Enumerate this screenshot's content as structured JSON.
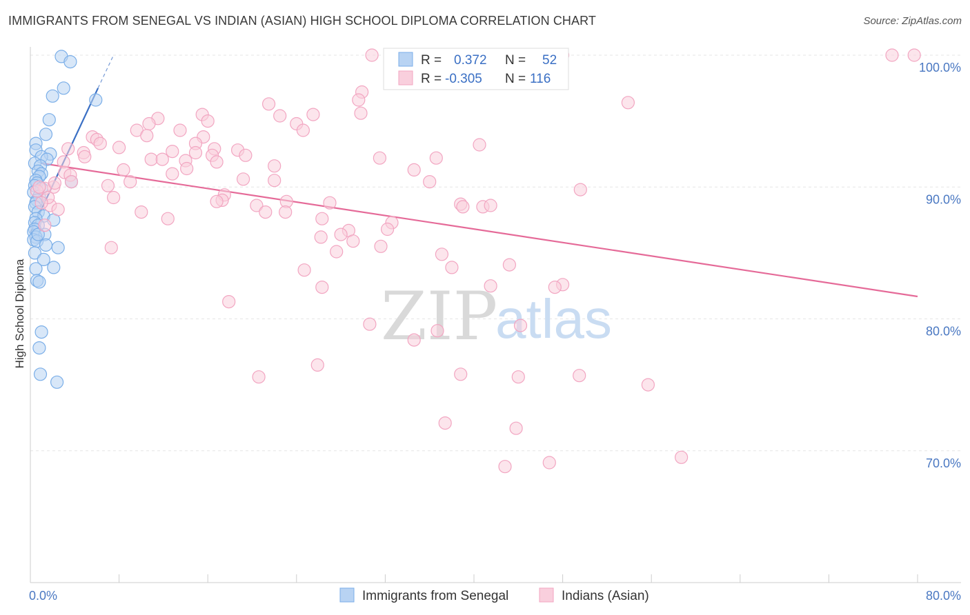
{
  "title": "IMMIGRANTS FROM SENEGAL VS INDIAN (ASIAN) HIGH SCHOOL DIPLOMA CORRELATION CHART",
  "source": "Source: ZipAtlas.com",
  "watermark": {
    "zip": "ZIP",
    "atlas": "atlas"
  },
  "chart_data": {
    "type": "scatter",
    "ylabel": "High School Diploma",
    "xlim": [
      0,
      80
    ],
    "ylim": [
      60,
      100
    ],
    "x_tick_labels": {
      "min": "0.0%",
      "max": "80.0%"
    },
    "y_ticks": [
      {
        "value": 100,
        "label": "100.0%"
      },
      {
        "value": 90,
        "label": "90.0%"
      },
      {
        "value": 80,
        "label": "80.0%"
      },
      {
        "value": 70,
        "label": "70.0%"
      }
    ],
    "legend": {
      "r_label": "R =",
      "n_label": "N =",
      "entries": [
        {
          "name": "Immigrants from Senegal",
          "r": "0.372",
          "n": "52"
        },
        {
          "name": "Indians (Asian)",
          "r": "-0.305",
          "n": "116"
        }
      ]
    },
    "series": [
      {
        "name": "Immigrants from Senegal",
        "color": "#7aaee8",
        "fill": "#b8d3f3",
        "trend": {
          "x": [
            0.0,
            6.1
          ],
          "y": [
            86.5,
            97.5
          ],
          "color": "#3a6fc4",
          "dash_to": {
            "x": 7.5,
            "y": 100.0
          }
        },
        "points": [
          [
            2.8,
            99.9
          ],
          [
            3.6,
            99.5
          ],
          [
            3.0,
            97.5
          ],
          [
            2.0,
            96.9
          ],
          [
            5.9,
            96.6
          ],
          [
            1.7,
            95.1
          ],
          [
            1.4,
            94.0
          ],
          [
            0.5,
            93.3
          ],
          [
            0.5,
            92.8
          ],
          [
            1.8,
            92.5
          ],
          [
            1.0,
            92.3
          ],
          [
            1.5,
            92.1
          ],
          [
            0.4,
            91.8
          ],
          [
            0.9,
            91.6
          ],
          [
            0.7,
            91.2
          ],
          [
            1.0,
            91.0
          ],
          [
            0.8,
            90.8
          ],
          [
            0.5,
            90.5
          ],
          [
            0.6,
            90.3
          ],
          [
            3.7,
            90.4
          ],
          [
            0.4,
            90.1
          ],
          [
            1.0,
            89.9
          ],
          [
            0.3,
            89.6
          ],
          [
            0.8,
            89.3
          ],
          [
            0.6,
            89.0
          ],
          [
            0.5,
            88.8
          ],
          [
            0.4,
            88.5
          ],
          [
            0.7,
            88.1
          ],
          [
            1.2,
            87.8
          ],
          [
            2.1,
            87.5
          ],
          [
            0.5,
            87.6
          ],
          [
            0.4,
            87.3
          ],
          [
            0.7,
            87.1
          ],
          [
            0.4,
            86.8
          ],
          [
            0.3,
            86.6
          ],
          [
            1.3,
            86.4
          ],
          [
            0.5,
            86.2
          ],
          [
            0.3,
            86.0
          ],
          [
            0.6,
            85.9
          ],
          [
            1.4,
            85.6
          ],
          [
            2.5,
            85.4
          ],
          [
            0.4,
            85.0
          ],
          [
            1.2,
            84.5
          ],
          [
            2.1,
            83.9
          ],
          [
            0.5,
            83.8
          ],
          [
            0.6,
            82.9
          ],
          [
            0.8,
            82.8
          ],
          [
            1.0,
            79.0
          ],
          [
            0.8,
            77.8
          ],
          [
            0.9,
            75.8
          ],
          [
            2.4,
            75.2
          ],
          [
            0.7,
            86.4
          ]
        ]
      },
      {
        "name": "Indians (Asian)",
        "color": "#f2a5c1",
        "fill": "#f9cfdd",
        "trend": {
          "x": [
            1.0,
            80.0
          ],
          "y": [
            91.8,
            81.7
          ],
          "color": "#e56a98"
        },
        "points": [
          [
            30.8,
            100.0
          ],
          [
            48.0,
            100.0
          ],
          [
            77.7,
            100.0
          ],
          [
            79.7,
            100.0
          ],
          [
            29.9,
            97.2
          ],
          [
            29.6,
            96.6
          ],
          [
            21.5,
            96.3
          ],
          [
            53.9,
            96.4
          ],
          [
            29.8,
            95.6
          ],
          [
            15.5,
            95.5
          ],
          [
            25.5,
            95.5
          ],
          [
            22.5,
            95.4
          ],
          [
            11.5,
            95.2
          ],
          [
            16.0,
            95.0
          ],
          [
            10.7,
            94.8
          ],
          [
            24.0,
            94.8
          ],
          [
            9.6,
            94.3
          ],
          [
            13.5,
            94.3
          ],
          [
            24.6,
            94.3
          ],
          [
            10.5,
            93.9
          ],
          [
            15.6,
            93.8
          ],
          [
            5.6,
            93.8
          ],
          [
            6.0,
            93.6
          ],
          [
            6.3,
            93.3
          ],
          [
            40.5,
            93.2
          ],
          [
            14.9,
            93.3
          ],
          [
            8.0,
            93.0
          ],
          [
            3.4,
            92.9
          ],
          [
            16.6,
            92.9
          ],
          [
            12.8,
            92.7
          ],
          [
            18.7,
            92.8
          ],
          [
            14.9,
            92.6
          ],
          [
            4.8,
            92.6
          ],
          [
            16.4,
            92.4
          ],
          [
            19.4,
            92.4
          ],
          [
            4.9,
            92.3
          ],
          [
            31.5,
            92.2
          ],
          [
            36.6,
            92.2
          ],
          [
            10.9,
            92.1
          ],
          [
            11.9,
            92.1
          ],
          [
            14.0,
            92.0
          ],
          [
            16.8,
            91.9
          ],
          [
            3.0,
            91.9
          ],
          [
            22.0,
            91.6
          ],
          [
            14.1,
            91.4
          ],
          [
            8.4,
            91.3
          ],
          [
            34.6,
            91.3
          ],
          [
            3.1,
            91.1
          ],
          [
            12.8,
            91.0
          ],
          [
            3.6,
            90.9
          ],
          [
            19.2,
            90.6
          ],
          [
            3.7,
            90.4
          ],
          [
            9.0,
            90.4
          ],
          [
            22.0,
            90.5
          ],
          [
            36.0,
            90.4
          ],
          [
            7.0,
            90.1
          ],
          [
            2.1,
            90.0
          ],
          [
            1.3,
            89.9
          ],
          [
            49.6,
            89.8
          ],
          [
            17.5,
            89.4
          ],
          [
            7.5,
            89.2
          ],
          [
            17.3,
            89.0
          ],
          [
            16.8,
            88.9
          ],
          [
            23.1,
            88.9
          ],
          [
            27.0,
            88.8
          ],
          [
            1.8,
            88.6
          ],
          [
            38.8,
            88.7
          ],
          [
            39.0,
            88.5
          ],
          [
            40.8,
            88.5
          ],
          [
            41.5,
            88.6
          ],
          [
            20.4,
            88.6
          ],
          [
            2.5,
            88.3
          ],
          [
            10.0,
            88.1
          ],
          [
            21.2,
            88.1
          ],
          [
            23.0,
            88.1
          ],
          [
            12.4,
            87.6
          ],
          [
            26.3,
            87.6
          ],
          [
            32.6,
            87.3
          ],
          [
            1.3,
            87.1
          ],
          [
            32.2,
            86.8
          ],
          [
            28.7,
            86.7
          ],
          [
            28.0,
            86.4
          ],
          [
            26.2,
            86.2
          ],
          [
            29.1,
            85.9
          ],
          [
            31.6,
            85.5
          ],
          [
            7.3,
            85.4
          ],
          [
            27.6,
            85.1
          ],
          [
            37.1,
            84.9
          ],
          [
            43.2,
            84.1
          ],
          [
            38.0,
            83.9
          ],
          [
            24.7,
            83.7
          ],
          [
            26.3,
            82.4
          ],
          [
            41.5,
            82.5
          ],
          [
            48.0,
            82.6
          ],
          [
            47.3,
            82.4
          ],
          [
            17.9,
            81.3
          ],
          [
            30.6,
            79.6
          ],
          [
            44.2,
            79.5
          ],
          [
            36.7,
            79.1
          ],
          [
            34.6,
            78.4
          ],
          [
            25.9,
            76.5
          ],
          [
            38.8,
            75.8
          ],
          [
            44.0,
            75.6
          ],
          [
            49.5,
            75.7
          ],
          [
            20.6,
            75.6
          ],
          [
            55.7,
            75.0
          ],
          [
            37.4,
            72.1
          ],
          [
            43.8,
            71.7
          ],
          [
            58.7,
            69.5
          ],
          [
            46.8,
            69.1
          ],
          [
            42.8,
            68.8
          ],
          [
            0.6,
            89.7
          ],
          [
            0.8,
            90.0
          ],
          [
            1.6,
            89.2
          ],
          [
            2.2,
            90.3
          ],
          [
            1.0,
            88.8
          ]
        ]
      }
    ]
  }
}
